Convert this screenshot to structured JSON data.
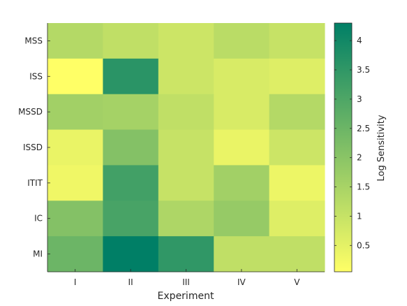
{
  "chart_data": {
    "type": "heatmap",
    "title": "",
    "xlabel": "Experiment",
    "ylabel": "",
    "x_categories": [
      "I",
      "II",
      "III",
      "IV",
      "V"
    ],
    "y_categories": [
      "MSS",
      "ISS",
      "MSSD",
      "ISSD",
      "ITIT",
      "IC",
      "MI"
    ],
    "values": [
      [
        1.3,
        1.1,
        0.9,
        1.2,
        1.0
      ],
      [
        0.05,
        3.6,
        0.9,
        0.7,
        0.6
      ],
      [
        1.6,
        1.55,
        1.1,
        0.7,
        1.3
      ],
      [
        0.4,
        2.1,
        1.0,
        0.4,
        0.9
      ],
      [
        0.3,
        3.2,
        1.0,
        1.6,
        0.35
      ],
      [
        2.1,
        3.1,
        1.4,
        1.8,
        0.6
      ],
      [
        2.5,
        4.3,
        3.5,
        1.1,
        1.1
      ]
    ],
    "colorbar": {
      "label": "Log Sensitivity",
      "range": [
        0.05,
        4.3
      ],
      "ticks": [
        0.5,
        1,
        1.5,
        2,
        2.5,
        3,
        3.5,
        4
      ],
      "tick_labels": [
        "0.5",
        "1",
        "1.5",
        "2",
        "2.5",
        "3",
        "3.5",
        "4"
      ],
      "colormap": [
        "#ffff66",
        "#007f66"
      ]
    }
  }
}
